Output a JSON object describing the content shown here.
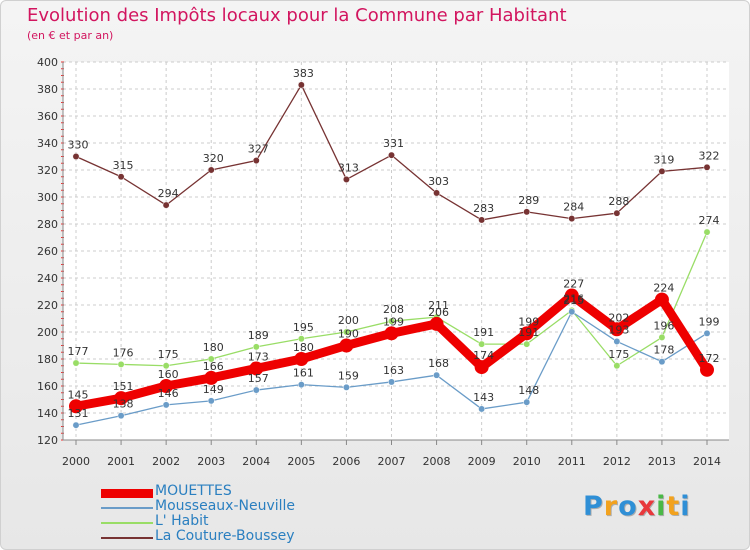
{
  "title": "Evolution des Impôts locaux pour la Commune par Habitant",
  "subtitle": "(en € et par an)",
  "chart_data": {
    "type": "line",
    "x": [
      "2000",
      "2001",
      "2002",
      "2003",
      "2004",
      "2005",
      "2006",
      "2007",
      "2008",
      "2009",
      "2010",
      "2011",
      "2012",
      "2013",
      "2014"
    ],
    "ylim": [
      120,
      400
    ],
    "yticks": [
      120,
      140,
      160,
      180,
      200,
      220,
      240,
      260,
      280,
      300,
      320,
      340,
      360,
      380,
      400
    ],
    "grid": true,
    "legend_position": "bottom-left",
    "series": [
      {
        "name": "MOUETTES",
        "color": "#ee0000",
        "values": [
          145,
          151,
          160,
          166,
          173,
          180,
          190,
          199,
          206,
          174,
          199,
          227,
          202,
          224,
          172
        ]
      },
      {
        "name": "Mousseaux-Neuville",
        "color": "#6a9cc8",
        "values": [
          131,
          138,
          146,
          149,
          157,
          161,
          159,
          163,
          168,
          143,
          148,
          215,
          193,
          178,
          199
        ]
      },
      {
        "name": "L' Habit",
        "color": "#99dd66",
        "values": [
          177,
          176,
          175,
          180,
          189,
          195,
          200,
          208,
          211,
          191,
          191,
          216,
          175,
          196,
          274
        ]
      },
      {
        "name": "La Couture-Boussey",
        "color": "#773333",
        "values": [
          330,
          315,
          294,
          320,
          327,
          383,
          313,
          331,
          303,
          283,
          289,
          284,
          288,
          319,
          322
        ]
      }
    ]
  },
  "logo": {
    "text": "Proxiti",
    "letters": [
      {
        "ch": "P",
        "color": "#2f8fd6"
      },
      {
        "ch": "r",
        "color": "#f2a21e"
      },
      {
        "ch": "o",
        "color": "#2f8fd6"
      },
      {
        "ch": "x",
        "color": "#e8383c"
      },
      {
        "ch": "i",
        "color": "#4ab847"
      },
      {
        "ch": "t",
        "color": "#f2a21e"
      },
      {
        "ch": "i",
        "color": "#2f8fd6"
      }
    ]
  }
}
